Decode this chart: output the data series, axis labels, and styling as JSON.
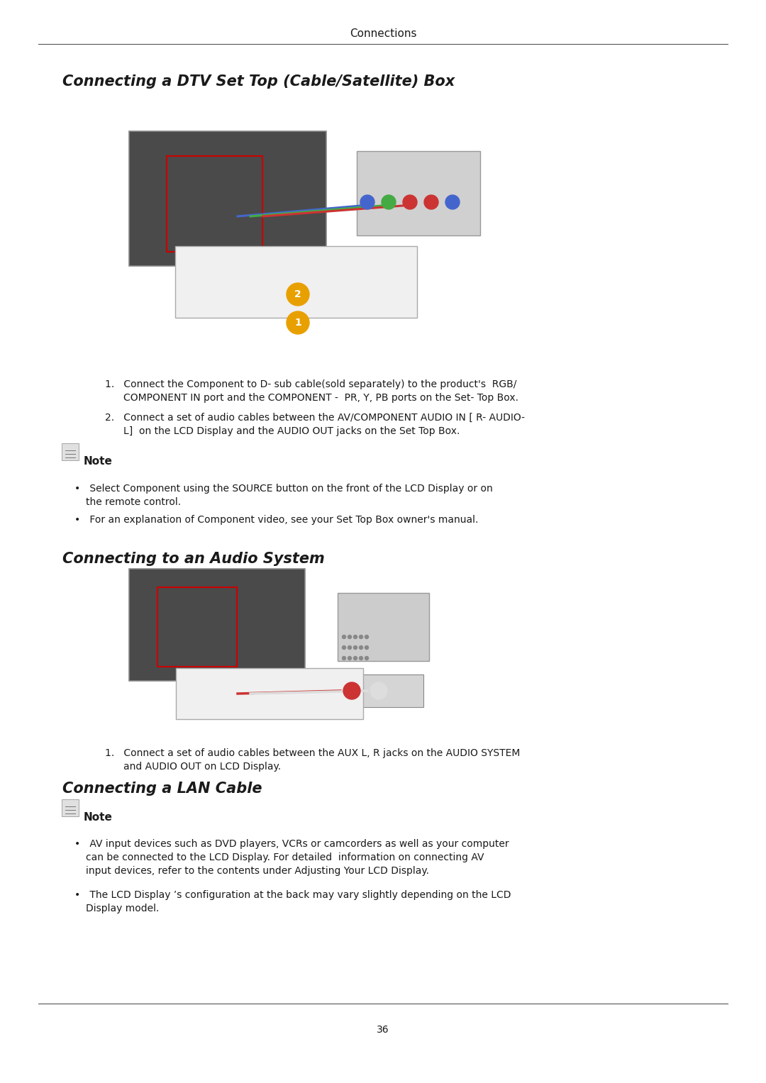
{
  "page_bg": "#ffffff",
  "header_text": "Connections",
  "header_fontsize": 11,
  "page_number": "36",
  "section1_title": "Connecting a DTV Set Top (Cable/Satellite) Box",
  "section2_title": "Connecting to an Audio System",
  "section3_title": "Connecting a LAN Cable",
  "section1_note_title": "Note",
  "section2_note_title": "Note",
  "section3_note_title": "Note",
  "text_color": "#1a1a1a",
  "section_title_fontsize": 15,
  "body_fontsize": 10,
  "note_fontsize": 11,
  "line_color": "#555555",
  "tv_facecolor": "#4a4a4a",
  "tv_edgecolor": "#888888",
  "red_box_color": "#cc0000",
  "comp_facecolor": "#d0d0d0",
  "comp_edgecolor": "#999999",
  "connector_colors": [
    "#4466cc",
    "#44aa44",
    "#cc3333",
    "#cc3333",
    "#4466cc"
  ],
  "cable_colors": [
    "#4466cc",
    "#44aa44",
    "#cc3333"
  ],
  "cable_bg_facecolor": "#f0f0f0",
  "cable_bg_edgecolor": "#aaaaaa",
  "circle_color": "#e8a000",
  "audio_facecolor": "#cccccc",
  "audio_edgecolor": "#999999",
  "rca_colors": [
    "#cc3333",
    "#dddddd"
  ],
  "note_icon_facecolor": "#e0e0e0",
  "note_icon_edgecolor": "#888888"
}
